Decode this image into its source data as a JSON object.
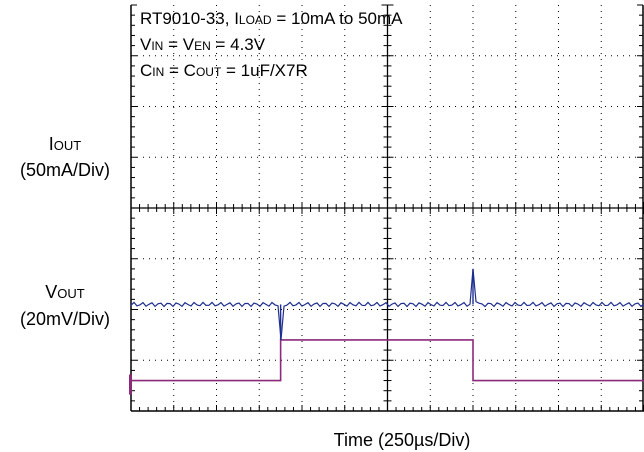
{
  "chart_data": {
    "type": "line",
    "x_division_label": "Time (250µs/Div)",
    "conditions": {
      "line1": {
        "prefix": "RT9010-33, I",
        "sub": "LOAD",
        "suffix": " = 10mA to 50mA"
      },
      "line2": {
        "a": "V",
        "a_sub": "IN",
        "mid": " = V",
        "b_sub": "EN",
        "suffix": " = 4.3V"
      },
      "line3": {
        "a": "C",
        "a_sub": "IN",
        "mid": " = C",
        "b_sub": "OUT",
        "suffix": " = 1uF/X7R"
      }
    },
    "channels": [
      {
        "symbol": "I",
        "sub": "OUT",
        "scale": "(50mA/Div)",
        "color": "#8b2a7a",
        "unit_per_div": 50,
        "unit": "mA"
      },
      {
        "symbol": "V",
        "sub": "OUT",
        "scale": "(20mV/Div)",
        "color": "#1f2f8f",
        "unit_per_div": 20,
        "unit": "mV"
      }
    ],
    "load_current": {
      "low_mA": 10,
      "high_mA": 50,
      "step_up_time_div": 3.5,
      "step_down_time_div": 8.0
    },
    "output_voltage": {
      "undershoot_mV": -14,
      "overshoot_mV": 14,
      "undershoot_time_div": 3.5,
      "overshoot_time_div": 8.0
    },
    "grid": {
      "x_divisions": 12,
      "y_divisions": 8,
      "grid": true
    },
    "colors": {
      "current_trace": "#8b2a7a",
      "voltage_trace": "#1f2f8f",
      "frame": "#000000",
      "grid": "#000000"
    }
  }
}
